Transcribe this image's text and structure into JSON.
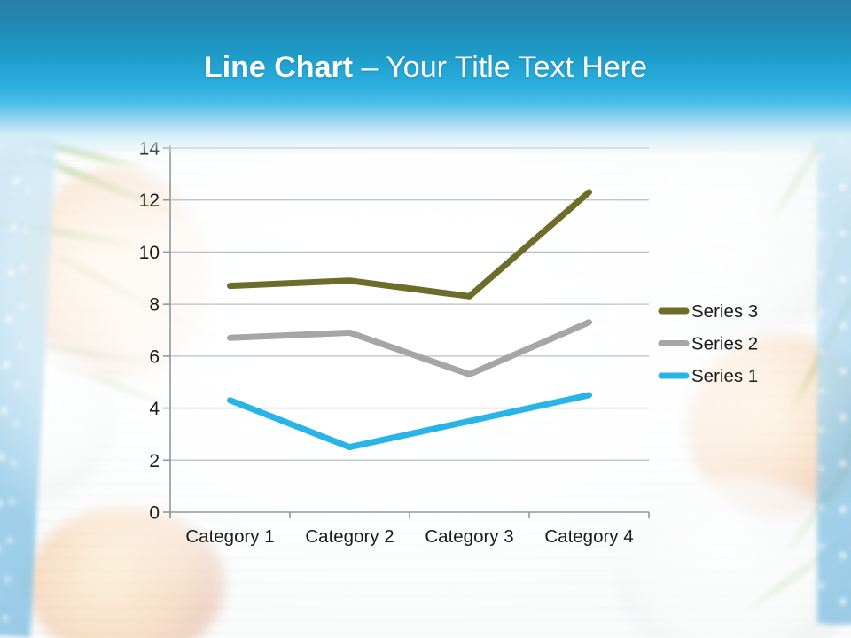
{
  "slide": {
    "title_bold": "Line Chart",
    "title_separator": "–",
    "title_regular": "Your Title Text Here",
    "theme": {
      "header_blue_top": "#2d7fa4",
      "header_blue_bright": "#2cb0e1",
      "title_color": "#ffffff"
    }
  },
  "chart_data": {
    "type": "line",
    "stacked": true,
    "title": "",
    "xlabel": "",
    "ylabel": "",
    "categories": [
      "Category 1",
      "Category 2",
      "Category 3",
      "Category 4"
    ],
    "series": [
      {
        "name": "Series 1",
        "color": "#29b4e8",
        "increments": [
          4.3,
          2.5,
          3.5,
          4.5
        ],
        "values": [
          4.3,
          2.5,
          3.5,
          4.5
        ]
      },
      {
        "name": "Series 2",
        "color": "#a6a6a6",
        "increments": [
          2.4,
          4.4,
          1.8,
          2.8
        ],
        "values": [
          6.7,
          6.9,
          5.3,
          7.3
        ]
      },
      {
        "name": "Series 3",
        "color": "#6d6c2a",
        "increments": [
          2.0,
          2.0,
          3.0,
          5.0
        ],
        "values": [
          8.7,
          8.9,
          8.3,
          12.3
        ]
      }
    ],
    "ylim": [
      0,
      14
    ],
    "ytick_step": 2,
    "ytick_labels": [
      "0",
      "2",
      "4",
      "6",
      "8",
      "10",
      "12",
      "14"
    ],
    "grid": "horizontal",
    "legend_position": "right",
    "legend_order": [
      "Series 3",
      "Series 2",
      "Series 1"
    ],
    "axis_text_color": "#1a1a1a",
    "gridline_color": "#b9bfc1",
    "axis_line_color": "#8f999c"
  }
}
